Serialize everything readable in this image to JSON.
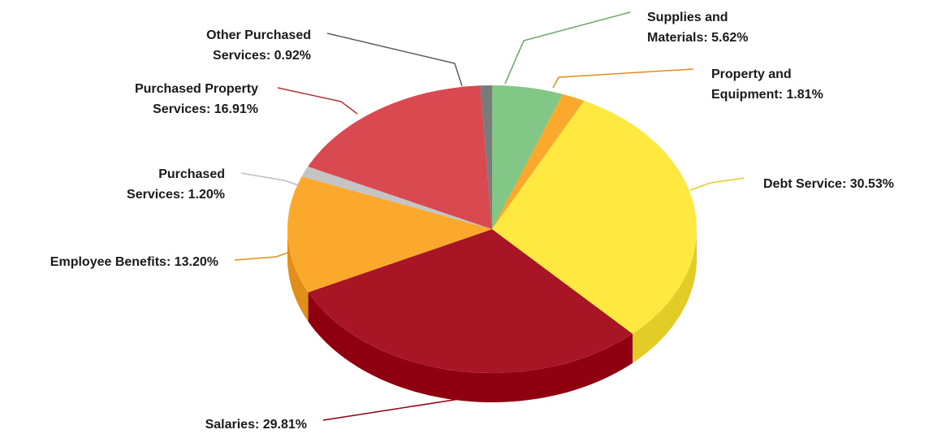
{
  "chart_data": {
    "type": "pie",
    "style": "3d",
    "title": "",
    "slices": [
      {
        "name": "Supplies and Materials",
        "value": 5.62,
        "value_label": "5.62%",
        "label_lines": [
          "Supplies and",
          "Materials: 5.62%"
        ],
        "color": "#82C785",
        "side_color": "#66A869"
      },
      {
        "name": "Property and Equipment",
        "value": 1.81,
        "value_label": "1.81%",
        "label_lines": [
          "Property and",
          "Equipment: 1.81%"
        ],
        "color": "#FBA92C",
        "side_color": "#E0901A"
      },
      {
        "name": "Debt Service",
        "value": 30.53,
        "value_label": "30.53%",
        "label_lines": [
          "Debt Service: 30.53%"
        ],
        "color": "#FFE83F",
        "side_color": "#E2CD26"
      },
      {
        "name": "Salaries",
        "value": 29.81,
        "value_label": "29.81%",
        "label_lines": [
          "Salaries: 29.81%"
        ],
        "color": "#A81626",
        "side_color": "#8E0010"
      },
      {
        "name": "Employee Benefits",
        "value": 13.2,
        "value_label": "13.20%",
        "label_lines": [
          "Employee Benefits: 13.20%"
        ],
        "color": "#FBA92C",
        "side_color": "#E0901A"
      },
      {
        "name": "Purchased Services",
        "value": 1.2,
        "value_label": "1.20%",
        "label_lines": [
          "Purchased",
          "Services: 1.20%"
        ],
        "color": "#C4C4C4",
        "side_color": "#A8A8A8"
      },
      {
        "name": "Purchased Property Services",
        "value": 16.91,
        "value_label": "16.91%",
        "label_lines": [
          "Purchased Property",
          "Services: 16.91%"
        ],
        "color": "#D84A50",
        "side_color": "#B53238"
      },
      {
        "name": "Other Purchased Services",
        "value": 0.92,
        "value_label": "0.92%",
        "label_lines": [
          "Other Purchased",
          "Services: 0.92%"
        ],
        "color": "#7A7A7A",
        "side_color": "#5E5E5E"
      }
    ],
    "legend": "none",
    "labels": "outside-with-leader-lines"
  }
}
